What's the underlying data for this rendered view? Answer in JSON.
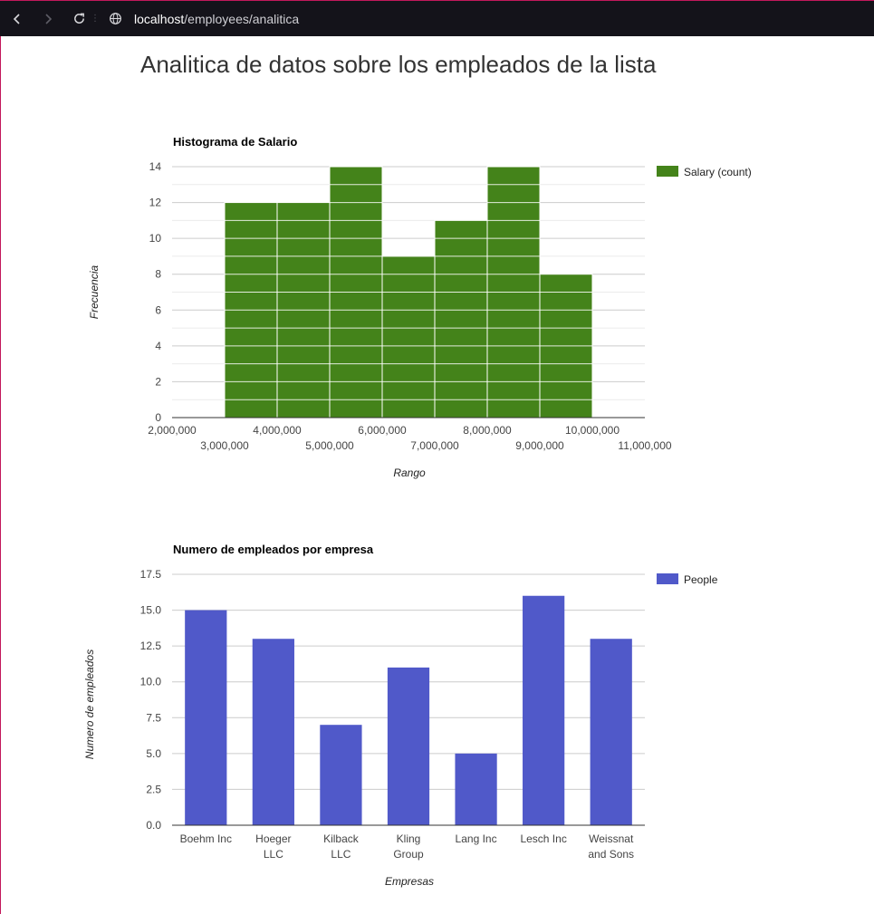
{
  "browser": {
    "url_host": "localhost",
    "url_path": "/employees/analitica"
  },
  "page": {
    "title": "Analitica de datos sobre los empleados de la lista"
  },
  "colors": {
    "histogram_bar": "#44831a",
    "company_bar": "#5059c9",
    "gridline": "#cccccc",
    "minor_gridline": "#ebebeb"
  },
  "chart_data": [
    {
      "type": "bar",
      "subtype": "histogram",
      "title": "Histograma de Salario",
      "xlabel": "Rango",
      "ylabel": "Frecuencia",
      "legend": {
        "label": "Salary (count)",
        "position": "right"
      },
      "bins": [
        {
          "from": 3000000,
          "to": 4000000,
          "count": 12
        },
        {
          "from": 4000000,
          "to": 5000000,
          "count": 12
        },
        {
          "from": 5000000,
          "to": 6000000,
          "count": 14
        },
        {
          "from": 6000000,
          "to": 7000000,
          "count": 9
        },
        {
          "from": 7000000,
          "to": 8000000,
          "count": 11
        },
        {
          "from": 8000000,
          "to": 9000000,
          "count": 14
        },
        {
          "from": 9000000,
          "to": 10000000,
          "count": 8
        }
      ],
      "xlim": [
        2000000,
        11000000
      ],
      "xticks": [
        {
          "value": 2000000,
          "label": "2,000,000",
          "row": 1
        },
        {
          "value": 3000000,
          "label": "3,000,000",
          "row": 2
        },
        {
          "value": 4000000,
          "label": "4,000,000",
          "row": 1
        },
        {
          "value": 5000000,
          "label": "5,000,000",
          "row": 2
        },
        {
          "value": 6000000,
          "label": "6,000,000",
          "row": 1
        },
        {
          "value": 7000000,
          "label": "7,000,000",
          "row": 2
        },
        {
          "value": 8000000,
          "label": "8,000,000",
          "row": 1
        },
        {
          "value": 9000000,
          "label": "9,000,000",
          "row": 2
        },
        {
          "value": 10000000,
          "label": "10,000,000",
          "row": 1
        },
        {
          "value": 11000000,
          "label": "11,000,000",
          "row": 2
        }
      ],
      "ylim": [
        0,
        14
      ],
      "yticks": [
        "0",
        "2",
        "4",
        "6",
        "8",
        "10",
        "12",
        "14"
      ],
      "grid": true
    },
    {
      "type": "bar",
      "title": "Numero de empleados por empresa",
      "xlabel": "Empresas",
      "ylabel": "Numero de empleados",
      "legend": {
        "label": "People",
        "position": "right"
      },
      "categories": [
        [
          "Boehm Inc"
        ],
        [
          "Hoeger",
          "LLC"
        ],
        [
          "Kilback",
          "LLC"
        ],
        [
          "Kling",
          "Group"
        ],
        [
          "Lang Inc"
        ],
        [
          "Lesch Inc"
        ],
        [
          "Weissnat",
          "and Sons"
        ]
      ],
      "values": [
        15,
        13,
        7,
        11,
        5,
        16,
        13
      ],
      "ylim": [
        0,
        17.5
      ],
      "yticks": [
        "0.0",
        "2.5",
        "5.0",
        "7.5",
        "10.0",
        "12.5",
        "15.0",
        "17.5"
      ],
      "grid": true
    }
  ]
}
